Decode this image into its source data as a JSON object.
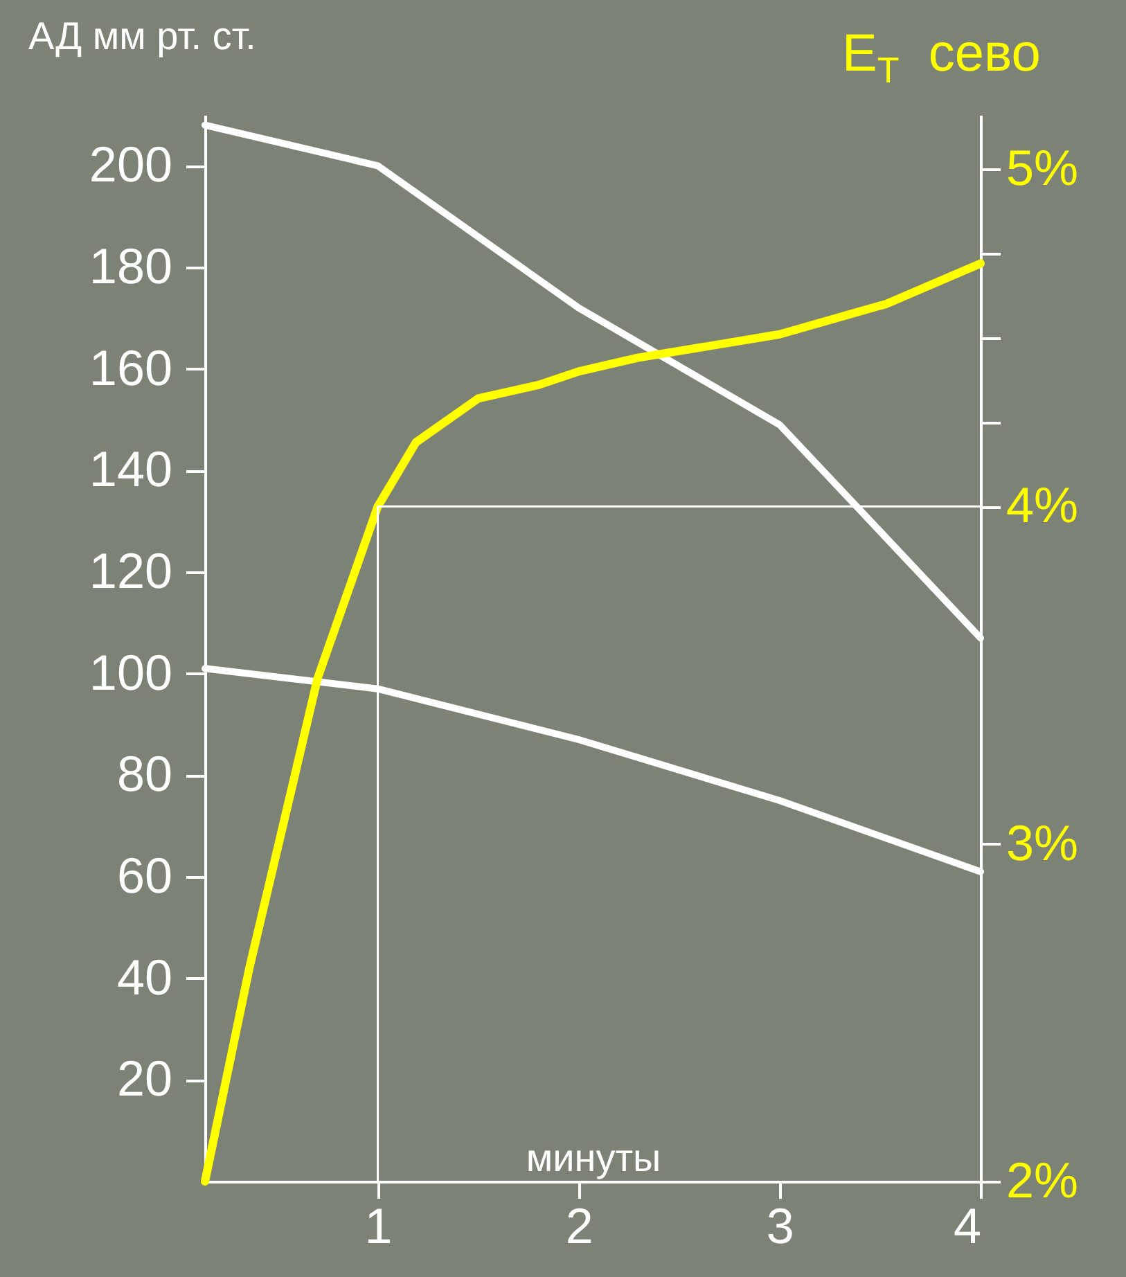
{
  "chart_data": {
    "type": "line",
    "xlabel": "минуты",
    "ylabel": "АД мм рт. ст.",
    "y2label": "E$_{T}$  сево",
    "xlim": [
      0.14,
      4
    ],
    "xticks": [
      1,
      2,
      3,
      4
    ],
    "ylim": [
      0,
      210
    ],
    "yticks": [
      20,
      40,
      60,
      80,
      100,
      120,
      140,
      160,
      180,
      200
    ],
    "y2lim": [
      2,
      5.16
    ],
    "y2ticks": [
      {
        "value": 2,
        "label": "2%"
      },
      {
        "value": 3,
        "label": "3%"
      },
      {
        "value": 4,
        "label": "4%"
      },
      {
        "value": 4.25,
        "label": null
      },
      {
        "value": 4.5,
        "label": null
      },
      {
        "value": 4.75,
        "label": null
      },
      {
        "value": 5,
        "label": "5%"
      }
    ],
    "grid": false,
    "legend": false,
    "marker": "none",
    "line_style": "solid",
    "x": [
      0.14,
      1,
      2,
      3,
      4
    ],
    "series": [
      {
        "color": "#ffffff",
        "values": [
          208,
          200,
          172,
          149,
          107
        ]
      },
      {
        "color": "#ffffff",
        "values": [
          101,
          97,
          87,
          75,
          61
        ]
      },
      {
        "color": "#ffff00",
        "axis": "y2",
        "x": [
          0.14,
          0.36,
          0.57,
          0.7,
          1,
          1.19,
          1.5,
          1.8,
          2,
          2.29,
          3,
          3.53,
          4
        ],
        "values": [
          2.0,
          2.63,
          3.16,
          3.49,
          4.0,
          4.19,
          4.32,
          4.36,
          4.4,
          4.44,
          4.51,
          4.6,
          4.72
        ]
      }
    ],
    "ref_lines": [
      {
        "axis": "x",
        "value": 1,
        "color": "#ffffff"
      },
      {
        "axis": "y2",
        "value": 4,
        "color": "#ffffff"
      }
    ]
  }
}
